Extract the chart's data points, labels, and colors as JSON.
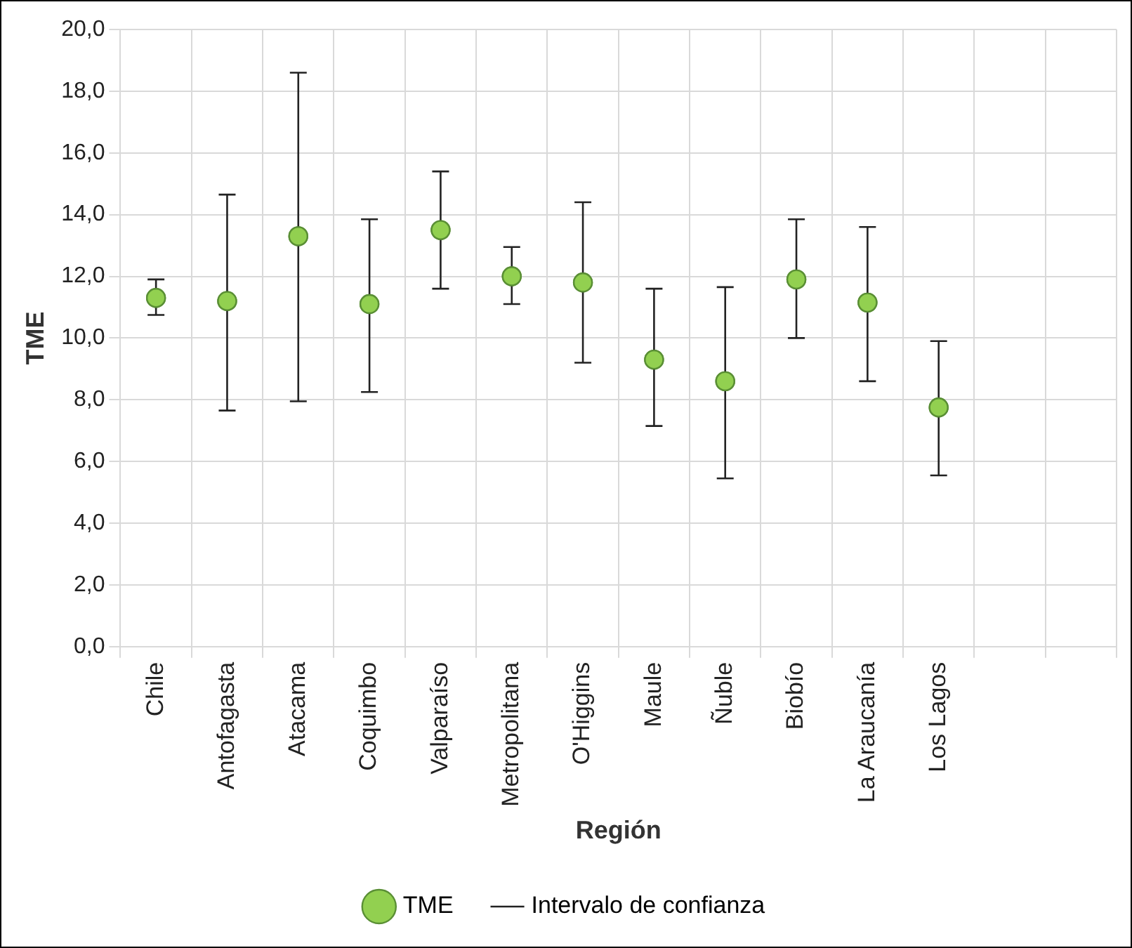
{
  "chart_data": {
    "type": "scatter",
    "xlabel": "Región",
    "ylabel": "TME",
    "categories": [
      "Chile",
      "Antofagasta",
      "Atacama",
      "Coquimbo",
      "Valparaíso",
      "Metropolitana",
      "O'Higgins",
      "Maule",
      "Ñuble",
      "Biobío",
      "La Araucanía",
      "Los Lagos",
      null,
      null
    ],
    "series": [
      {
        "name": "TME",
        "color": "#92d050",
        "values": [
          11.3,
          11.2,
          13.3,
          11.1,
          13.5,
          12.0,
          11.8,
          9.3,
          8.6,
          11.9,
          11.15,
          7.75,
          null,
          null
        ],
        "errors": [
          [
            10.75,
            11.9
          ],
          [
            7.65,
            14.65
          ],
          [
            7.95,
            18.6
          ],
          [
            8.25,
            13.85
          ],
          [
            11.6,
            15.4
          ],
          [
            11.1,
            12.95
          ],
          [
            9.2,
            14.4
          ],
          [
            7.15,
            11.6
          ],
          [
            5.45,
            11.65
          ],
          [
            10.0,
            13.85
          ],
          [
            8.6,
            13.6
          ],
          [
            5.55,
            9.9
          ],
          null,
          null
        ]
      }
    ],
    "annotations": [
      "Intervalo de confianza"
    ],
    "ylim": [
      0,
      20
    ],
    "yticks": [
      {
        "value": 0,
        "label": "0,0"
      },
      {
        "value": 2,
        "label": "2,0"
      },
      {
        "value": 4,
        "label": "4,0"
      },
      {
        "value": 6,
        "label": "6,0"
      },
      {
        "value": 8,
        "label": "8,0"
      },
      {
        "value": 10,
        "label": "10,0"
      },
      {
        "value": 12,
        "label": "12,0"
      },
      {
        "value": 14,
        "label": "14,0"
      },
      {
        "value": 16,
        "label": "16,0"
      },
      {
        "value": 18,
        "label": "18,0"
      },
      {
        "value": 20,
        "label": "20,0"
      }
    ],
    "grid": true,
    "legend": "bottom",
    "marker": "circle"
  }
}
